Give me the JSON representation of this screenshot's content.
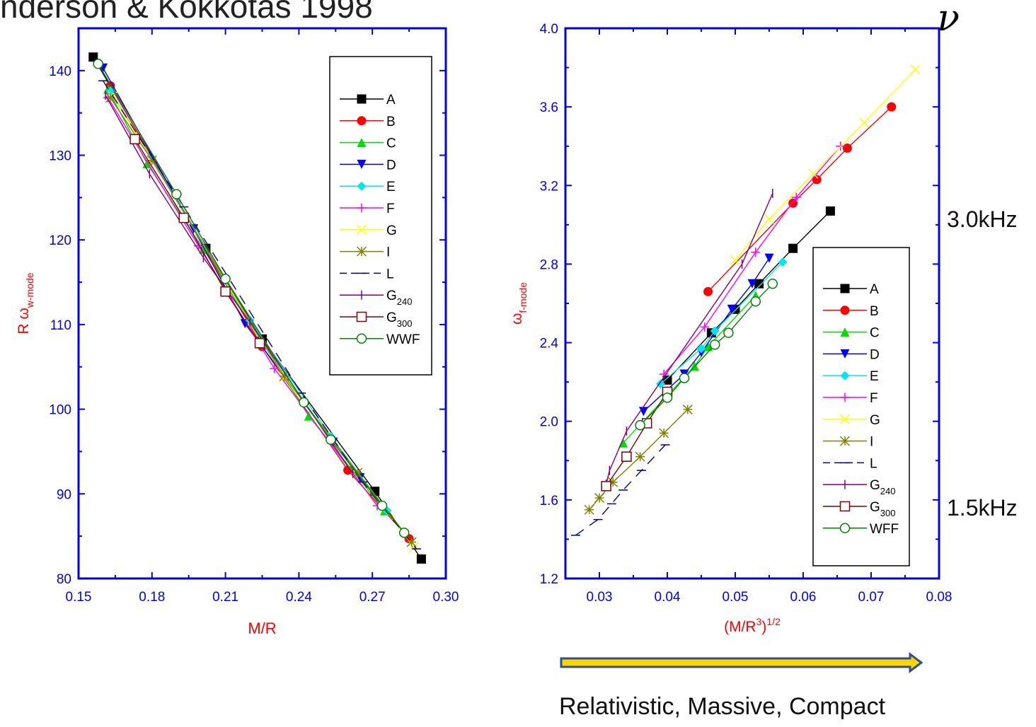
{
  "slide": {
    "title": "nderson & Kokkotas 1998",
    "nu_symbol": "ν",
    "freq_high": "3.0kHz",
    "freq_low": "1.5kHz",
    "caption": "Relativistic, Massive, Compact",
    "arrow": {
      "fill": "#ffd700",
      "border": "#2f4f8f"
    }
  },
  "styles": {
    "A": {
      "color": "#000000",
      "marker": "square"
    },
    "B": {
      "color": "#ff0000",
      "marker": "circle"
    },
    "C": {
      "color": "#00dd00",
      "marker": "triangle-up"
    },
    "D": {
      "color": "#0000ff",
      "marker": "triangle-down"
    },
    "E": {
      "color": "#00e5ee",
      "marker": "diamond"
    },
    "F": {
      "color": "#ff00ff",
      "marker": "plus"
    },
    "G": {
      "color": "#ffff00",
      "marker": "cross"
    },
    "I": {
      "color": "#808000",
      "marker": "star"
    },
    "L": {
      "color": "#000080",
      "marker": "dash"
    },
    "G240": {
      "color": "#800080",
      "marker": "vbar"
    },
    "G300": {
      "color": "#800000",
      "marker": "open-square"
    },
    "WWF": {
      "color": "#008000",
      "marker": "open-circle"
    }
  },
  "chart_data": [
    {
      "type": "line",
      "xlabel": "M/R",
      "ylabel": "R ω_w-mode",
      "ylabel_main": "R ω",
      "ylabel_sub": "w-mode",
      "xlim": [
        0.15,
        0.3
      ],
      "ylim": [
        80,
        145
      ],
      "xticks": [
        0.15,
        0.18,
        0.21,
        0.24,
        0.27,
        0.3
      ],
      "xtick_labels": [
        "0.15",
        "0.18",
        "0.21",
        "0.24",
        "0.27",
        "0.30"
      ],
      "yticks": [
        80,
        90,
        100,
        110,
        120,
        130,
        140
      ],
      "ytick_labels": [
        "80",
        "90",
        "100",
        "110",
        "120",
        "130",
        "140"
      ],
      "legend": "top-right",
      "series": [
        {
          "name": "A",
          "label": "A",
          "x": [
            0.156,
            0.202,
            0.225,
            0.271,
            0.29
          ],
          "y": [
            141.6,
            119.0,
            108.3,
            90.3,
            82.3
          ]
        },
        {
          "name": "B",
          "label": "B",
          "x": [
            0.163,
            0.225,
            0.26,
            0.285
          ],
          "y": [
            138.2,
            107.4,
            92.8,
            84.7
          ]
        },
        {
          "name": "C",
          "label": "C",
          "x": [
            0.162,
            0.178,
            0.201,
            0.244,
            0.275
          ],
          "y": [
            137.8,
            129.0,
            118.9,
            99.2,
            88.0
          ]
        },
        {
          "name": "D",
          "label": "D",
          "x": [
            0.16,
            0.197,
            0.218,
            0.254,
            0.265
          ],
          "y": [
            140.3,
            121.3,
            110.1,
            96.1,
            91.9
          ]
        },
        {
          "name": "E",
          "label": "E",
          "x": [
            0.163,
            0.22,
            0.253,
            0.276
          ],
          "y": [
            137.6,
            110.5,
            96.8,
            88.0
          ]
        },
        {
          "name": "F",
          "label": "F",
          "x": [
            0.162,
            0.199,
            0.23,
            0.272
          ],
          "y": [
            136.8,
            119.3,
            104.8,
            88.6
          ]
        },
        {
          "name": "G",
          "label": "G",
          "x": [
            0.164,
            0.234,
            0.287
          ],
          "y": [
            137.0,
            103.8,
            83.7
          ]
        },
        {
          "name": "I",
          "label": "I",
          "x": [
            0.163,
            0.18,
            0.234,
            0.264,
            0.286
          ],
          "y": [
            136.8,
            129.4,
            103.9,
            92.5,
            84.3
          ]
        },
        {
          "name": "L",
          "label": "L",
          "x": [
            0.16,
            0.193,
            0.241,
            0.266,
            0.288
          ],
          "y": [
            138.8,
            123.9,
            101.9,
            91.4,
            83.5
          ]
        },
        {
          "name": "G240",
          "label": "G",
          "label_sub": "240",
          "x": [
            0.161,
            0.179,
            0.201,
            0.22,
            0.262
          ],
          "y": [
            137.1,
            127.8,
            117.9,
            110.3,
            92.4
          ]
        },
        {
          "name": "G300",
          "label": "G",
          "label_sub": "300",
          "x": [
            0.173,
            0.193,
            0.21,
            0.224
          ],
          "y": [
            131.9,
            122.6,
            113.9,
            107.8
          ]
        },
        {
          "name": "WWF",
          "label": "WWF",
          "x": [
            0.158,
            0.19,
            0.21,
            0.242,
            0.253,
            0.274,
            0.283
          ],
          "y": [
            140.8,
            125.4,
            115.4,
            100.8,
            96.4,
            88.6,
            85.4
          ]
        }
      ]
    },
    {
      "type": "line",
      "xlabel": "(M/R^3)^1/2",
      "ylabel": "ω_f-mode",
      "ylabel_main": "ω",
      "ylabel_sub": "f-mode",
      "xlim": [
        0.025,
        0.08
      ],
      "ylim": [
        1.2,
        4.0
      ],
      "xticks": [
        0.03,
        0.04,
        0.05,
        0.06,
        0.07,
        0.08
      ],
      "xtick_labels": [
        "0.03",
        "0.04",
        "0.05",
        "0.06",
        "0.07",
        "0.08"
      ],
      "yticks": [
        1.2,
        1.6,
        2.0,
        2.4,
        2.8,
        3.2,
        3.6,
        4.0
      ],
      "ytick_labels": [
        "1.2",
        "1.6",
        "2.0",
        "2.4",
        "2.8",
        "3.2",
        "3.6",
        "4.0"
      ],
      "legend": "center-right",
      "series": [
        {
          "name": "A",
          "label": "A",
          "x": [
            0.04,
            0.0465,
            0.05,
            0.0535,
            0.0585,
            0.064
          ],
          "y": [
            2.21,
            2.45,
            2.57,
            2.7,
            2.88,
            3.07
          ]
        },
        {
          "name": "B",
          "label": "B",
          "x": [
            0.046,
            0.0585,
            0.062,
            0.0665,
            0.073
          ],
          "y": [
            2.66,
            3.11,
            3.23,
            3.39,
            3.6
          ]
        },
        {
          "name": "C",
          "label": "C",
          "x": [
            0.0335,
            0.044,
            0.046,
            0.053
          ],
          "y": [
            1.89,
            2.28,
            2.38,
            2.64
          ]
        },
        {
          "name": "D",
          "label": "D",
          "x": [
            0.0365,
            0.0425,
            0.045,
            0.0495,
            0.0525,
            0.055
          ],
          "y": [
            2.05,
            2.24,
            2.35,
            2.57,
            2.7,
            2.83
          ]
        },
        {
          "name": "E",
          "label": "E",
          "x": [
            0.039,
            0.045,
            0.047,
            0.057
          ],
          "y": [
            2.19,
            2.37,
            2.46,
            2.81
          ]
        },
        {
          "name": "F",
          "label": "F",
          "x": [
            0.0395,
            0.0455,
            0.053,
            0.059,
            0.0655
          ],
          "y": [
            2.24,
            2.48,
            2.86,
            3.14,
            3.4
          ]
        },
        {
          "name": "G",
          "label": "G",
          "x": [
            0.05,
            0.055,
            0.0615,
            0.069,
            0.0765
          ],
          "y": [
            2.82,
            3.03,
            3.26,
            3.52,
            3.79
          ]
        },
        {
          "name": "I",
          "label": "I",
          "x": [
            0.0285,
            0.03,
            0.032,
            0.036,
            0.0395,
            0.043
          ],
          "y": [
            1.55,
            1.61,
            1.69,
            1.82,
            1.94,
            2.06
          ]
        },
        {
          "name": "L",
          "label": "L",
          "x": [
            0.0265,
            0.0298,
            0.0318,
            0.0335,
            0.0362,
            0.0397
          ],
          "y": [
            1.42,
            1.5,
            1.58,
            1.65,
            1.75,
            1.88
          ]
        },
        {
          "name": "G240",
          "label": "G",
          "label_sub": "240",
          "x": [
            0.031,
            0.0315,
            0.034,
            0.051,
            0.0555
          ],
          "y": [
            1.68,
            1.75,
            1.95,
            2.8,
            3.16
          ]
        },
        {
          "name": "G300",
          "label": "G",
          "label_sub": "300",
          "x": [
            0.031,
            0.034,
            0.037,
            0.04
          ],
          "y": [
            1.67,
            1.82,
            1.99,
            2.15
          ]
        },
        {
          "name": "WFF",
          "label": "WFF",
          "x": [
            0.036,
            0.04,
            0.0425,
            0.047,
            0.049,
            0.053,
            0.0555
          ],
          "y": [
            1.98,
            2.12,
            2.22,
            2.39,
            2.45,
            2.61,
            2.7
          ]
        }
      ]
    }
  ]
}
